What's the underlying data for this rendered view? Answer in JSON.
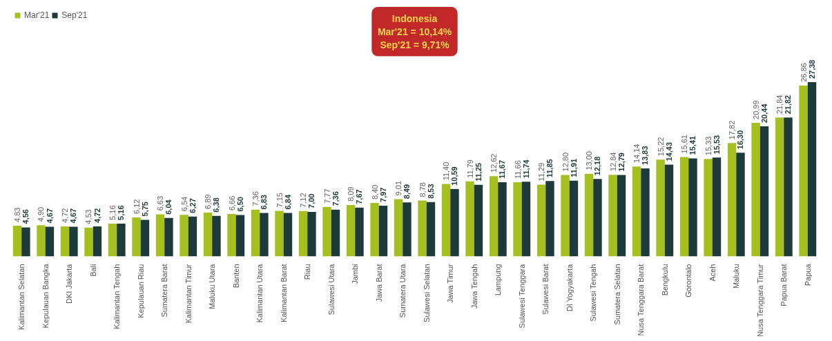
{
  "chart_data": {
    "type": "bar",
    "categories": [
      "Kalimantan Selatan",
      "Kepulauan Bangka",
      "DKI Jakarta",
      "Bali",
      "Kalimantan Tengah",
      "Kepulauan Riau",
      "Sumatera Barat",
      "Kalimantan Timur",
      "Maluku Utara",
      "Banten",
      "Kalimantan Utara",
      "Kalimantan Barat",
      "Riau",
      "Sulawesi Utara",
      "Jambi",
      "Jawa Barat",
      "Sumatera Utara",
      "Sulawesi Selatan",
      "Jawa Timur",
      "Jawa Tengah",
      "Lampung",
      "Sulawesi Tenggara",
      "Sulawesi Barat",
      "DI Yogyakarta",
      "Sulawesi Tengah",
      "Sumatera Selatan",
      "Nusa Tenggara Barat",
      "Bengkulu",
      "Gorontalo",
      "Aceh",
      "Maluku",
      "Nusa Tenggara Timur",
      "Papua Barat",
      "Papua"
    ],
    "series": [
      {
        "name": "Mar'21",
        "color": "#a4bf1e",
        "values": [
          4.83,
          4.9,
          4.72,
          4.53,
          5.16,
          6.12,
          6.63,
          6.54,
          6.89,
          6.66,
          7.36,
          7.15,
          7.12,
          7.77,
          8.09,
          8.4,
          9.01,
          8.78,
          11.4,
          11.79,
          12.62,
          11.66,
          11.29,
          12.8,
          13.0,
          12.84,
          14.14,
          15.22,
          15.61,
          15.33,
          17.82,
          20.99,
          21.84,
          26.86
        ],
        "value_labels": [
          "4,83",
          "4,90",
          "4,72",
          "4,53",
          "5,16",
          "6,12",
          "6,63",
          "6,54",
          "6,89",
          "6,66",
          "7,36",
          "7,15",
          "7,12",
          "7,77",
          "8,09",
          "8,40",
          "9,01",
          "8,78",
          "11,40",
          "11,79",
          "12,62",
          "11,66",
          "11,29",
          "12,80",
          "13,00",
          "12,84",
          "14,14",
          "15,22",
          "15,61",
          "15,33",
          "17,82",
          "20,99",
          "21,84",
          "26,86"
        ]
      },
      {
        "name": "Sep'21",
        "color": "#1e3a3a",
        "values": [
          4.56,
          4.67,
          4.67,
          4.72,
          5.16,
          5.75,
          6.04,
          6.27,
          6.38,
          6.5,
          6.83,
          6.84,
          7.0,
          7.36,
          7.67,
          7.97,
          8.49,
          8.53,
          10.59,
          11.25,
          11.67,
          11.74,
          11.85,
          11.91,
          12.18,
          12.79,
          13.83,
          14.43,
          15.41,
          15.53,
          16.3,
          20.44,
          21.82,
          27.38
        ],
        "value_labels": [
          "4,56",
          "4,67",
          "4,67",
          "4,72",
          "5,16",
          "5,75",
          "6,04",
          "6,27",
          "6,38",
          "6,50",
          "6,83",
          "6,84",
          "7,00",
          "7,36",
          "7,67",
          "7,97",
          "8,49",
          "8,53",
          "10,59",
          "11,25",
          "11,67",
          "11,74",
          "11,85",
          "11,91",
          "12,18",
          "12,79",
          "13,83",
          "14,43",
          "15,41",
          "15,53",
          "16,30",
          "20,44",
          "21,82",
          "27,38"
        ]
      }
    ],
    "annotations": [
      "Indonesia\nMar'21 = 10,14%\nSep'21 = 9,71%"
    ],
    "legend": "top left",
    "grid": false
  }
}
